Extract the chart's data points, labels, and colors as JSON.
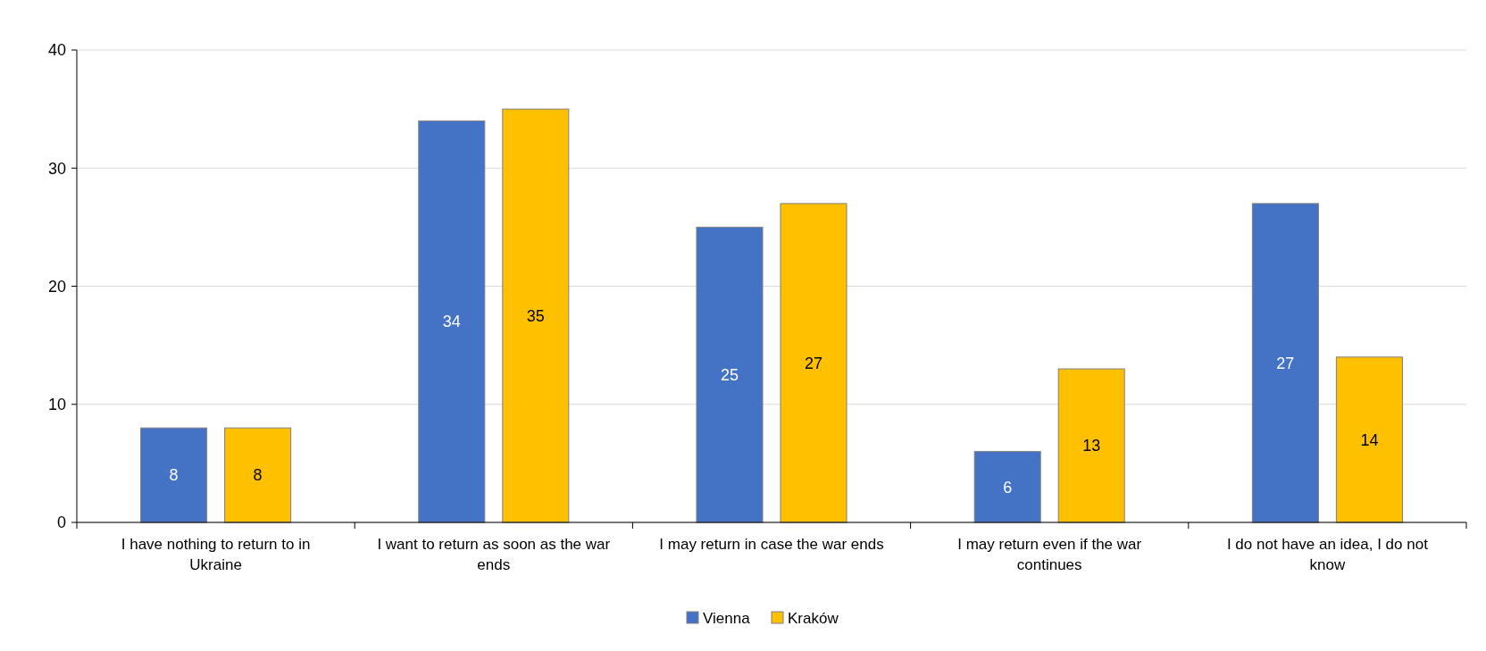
{
  "chart_data": {
    "type": "bar",
    "categories": [
      "I have nothing to return to in Ukraine",
      "I want to return as soon as the war ends",
      "I may return in case the war ends",
      "I may return even if the war continues",
      "I do not have an idea, I do not know"
    ],
    "series": [
      {
        "name": "Vienna",
        "color": "#4472c4",
        "values": [
          8,
          34,
          25,
          6,
          27
        ]
      },
      {
        "name": "Kraków",
        "color": "#ffc000",
        "values": [
          8,
          35,
          27,
          13,
          14
        ]
      }
    ],
    "ylim": [
      0,
      40
    ],
    "yticks": [
      0,
      10,
      20,
      30,
      40
    ],
    "grid": "y",
    "legend": "bottom",
    "data_labels": true
  }
}
